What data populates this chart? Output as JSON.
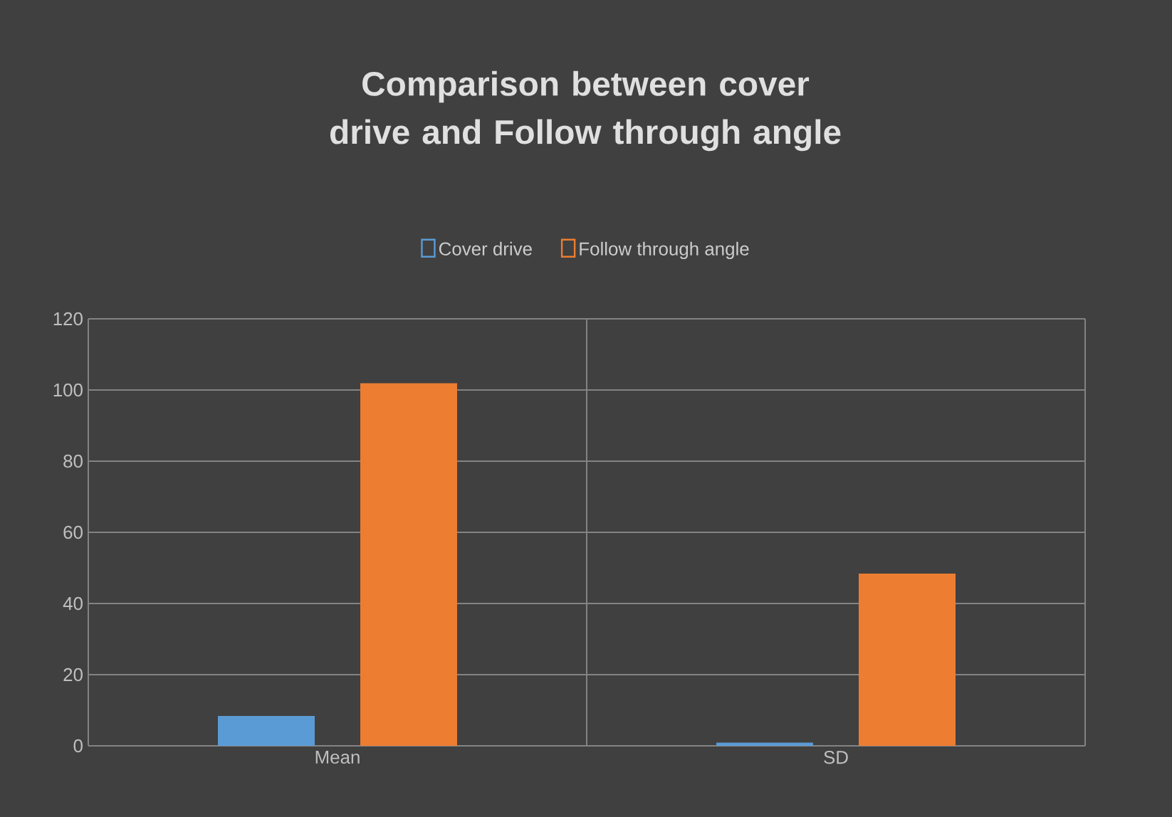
{
  "chart_data": {
    "type": "bar",
    "title": "Comparison between cover drive and Follow through angle",
    "categories": [
      "Mean",
      "SD"
    ],
    "series": [
      {
        "name": "Cover drive",
        "color": "#5b9bd5",
        "values": [
          8,
          0.5
        ]
      },
      {
        "name": "Follow through angle",
        "color": "#ed7d31",
        "values": [
          101.5,
          48
        ]
      }
    ],
    "ylim": [
      0,
      120
    ],
    "yticks": [
      0,
      20,
      40,
      60,
      80,
      100,
      120
    ],
    "grid": true,
    "legend": "top"
  }
}
